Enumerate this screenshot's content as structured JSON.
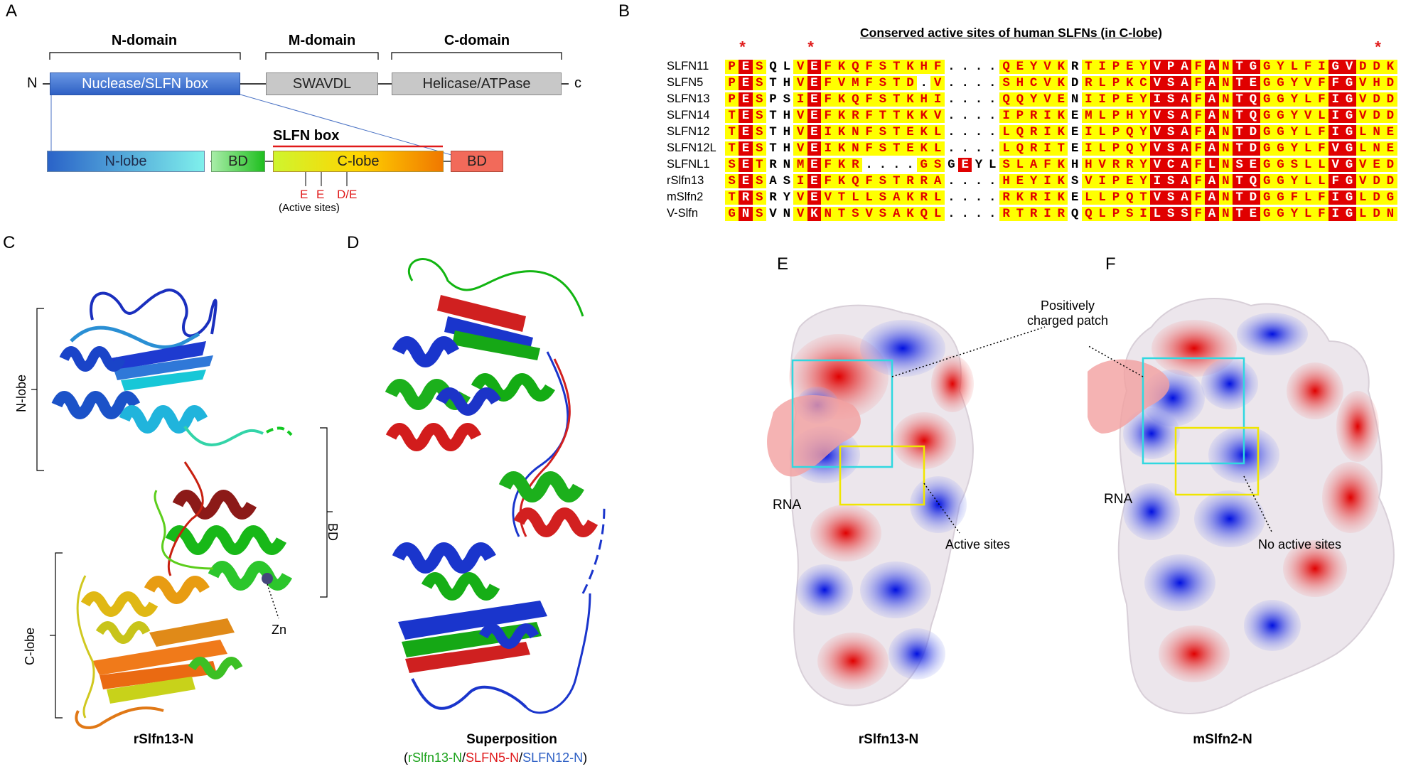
{
  "panels": {
    "a": "A",
    "b": "B",
    "c": "C",
    "d": "D",
    "e": "E",
    "f": "F"
  },
  "panelA": {
    "n_terminus": "N",
    "c_terminus": "c",
    "domains": [
      {
        "title": "N-domain",
        "box": "Nuclease/SLFN box"
      },
      {
        "title": "M-domain",
        "box": "SWAVDL"
      },
      {
        "title": "C-domain",
        "box": "Helicase/ATPase"
      }
    ],
    "subdomains": [
      "N-lobe",
      "BD",
      "C-lobe",
      "BD"
    ],
    "slfn_box_label": "SLFN box",
    "active_site_letters": [
      "E",
      "E",
      "D/E"
    ],
    "active_sites_caption": "(Active sites)"
  },
  "panelB": {
    "title": "Conserved active sites of human SLFNs (in C-lobe)",
    "rows": [
      {
        "name": "SLFN11",
        "seq": "PESQLVEFKQFSTKHF....QEYVKRTIPEYVPAFANTGGYLFIGVDDK"
      },
      {
        "name": "SLFN5",
        "seq": "PESTHVEFVMFSTD.V....SHCVKDRLPKCVSAFANTEGGYVFFGVHDE"
      },
      {
        "name": "SLFN13",
        "seq": "PESPSIEFKQFSTKHI....QQYVENIIPEYISAFANTQGGYLFIGVDDK"
      },
      {
        "name": "SLFN14",
        "seq": "TESTHVEFKRFTTKKV....IPRIKEMLPHYVSAFANTQGGYVLIGVDDK"
      },
      {
        "name": "SLFN12",
        "seq": "TESTHVEIKNFSTEKL....LQRIKEILPQYVSAFANTDGGYLFIGLNED"
      },
      {
        "name": "SLFN12L",
        "seq": "TESTHVEIKNFSTEKL....LQRITEILPQYVSAFANTDGGYLFVGLNED"
      },
      {
        "name": "SLFNL1",
        "seq": "SETRNMEFKR....GSGEYLSLAFKHHVRRYVCAFLNSEGGSLLVGVED."
      },
      {
        "name": "rSlfn13",
        "seq": "SESASIEFKQFSTRRA....HEYIKSVIPEYISAFANTQGGYLLFGVDDE"
      },
      {
        "name": "mSlfn2",
        "seq": "TRSRYVEVTLLSAKRL....RKRIKELLPQTVSAFANTDGGFLFIGLDGK"
      },
      {
        "name": "V-Slfn",
        "seq": "GNSVNVKNTSVSAKQL....RTRIRQQLPSILSSFANTEGGYLFIGLDNN"
      }
    ],
    "asterisk": "*"
  },
  "panelC": {
    "caption": "rSlfn13-N",
    "labels": {
      "nlobe": "N-lobe",
      "clobe": "C-lobe",
      "bd": "BD",
      "zn": "Zn"
    }
  },
  "panelD": {
    "caption": "Superposition",
    "legend": {
      "open": "(",
      "s1": "rSlfn13-N",
      "sep1": "/",
      "s2": "SLFN5-N",
      "sep2": "/",
      "s3": "SLFN12-N",
      "close": ")"
    },
    "colors": {
      "s1": "#1aa11a",
      "s2": "#e0191b",
      "s3": "#2d5fc4"
    }
  },
  "panelE": {
    "caption": "rSlfn13-N",
    "rna": "RNA",
    "patch_label": [
      "Positively",
      "charged patch"
    ],
    "active_label": "Active sites"
  },
  "panelF": {
    "caption": "mSlfn2-N",
    "rna": "RNA",
    "no_active_label": "No active sites"
  }
}
